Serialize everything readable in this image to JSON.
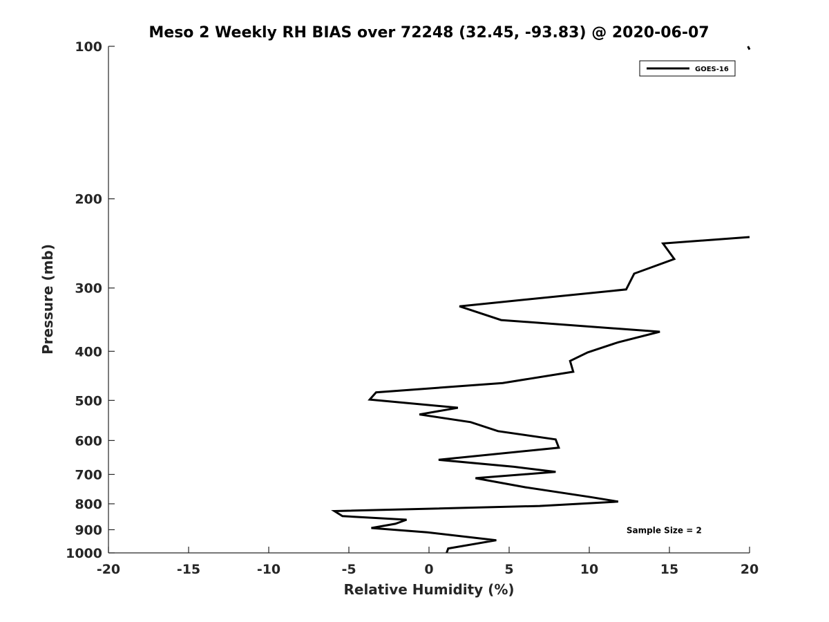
{
  "chart_data": {
    "type": "line",
    "title": "Meso 2 Weekly RH BIAS over 72248 (32.45, -93.83) @ 2020-06-07",
    "xlabel": "Relative Humidity (%)",
    "ylabel": "Pressure (mb)",
    "xlim": [
      -20,
      20
    ],
    "ylim": [
      100,
      1000
    ],
    "y_scale": "log",
    "y_reversed": true,
    "grid": false,
    "legend_position": "top-right",
    "x_ticks": [
      -20,
      -15,
      -10,
      -5,
      0,
      5,
      10,
      15,
      20
    ],
    "x_tick_labels": [
      "-20",
      "-15",
      "-10",
      "-5",
      "0",
      "5",
      "10",
      "15",
      "20"
    ],
    "y_ticks": [
      100,
      200,
      300,
      400,
      500,
      600,
      700,
      800,
      900,
      1000
    ],
    "y_tick_labels": [
      "100",
      "200",
      "300",
      "400",
      "500",
      "600",
      "700",
      "800",
      "900",
      "1000"
    ],
    "series": [
      {
        "name": "GOES-16",
        "color": "#000000",
        "segments": [
          [
            {
              "x": 19.9,
              "y": 100
            },
            {
              "x": 20.0,
              "y": 101.5
            }
          ],
          [
            {
              "x": 20.0,
              "y": 238
            },
            {
              "x": 14.6,
              "y": 245
            },
            {
              "x": 15.3,
              "y": 263
            },
            {
              "x": 12.8,
              "y": 281
            },
            {
              "x": 12.3,
              "y": 302
            },
            {
              "x": 1.9,
              "y": 326
            },
            {
              "x": 4.5,
              "y": 347
            },
            {
              "x": 14.4,
              "y": 366
            },
            {
              "x": 11.8,
              "y": 384
            },
            {
              "x": 9.9,
              "y": 402
            },
            {
              "x": 8.8,
              "y": 418
            },
            {
              "x": 9.0,
              "y": 439
            },
            {
              "x": 4.6,
              "y": 462
            },
            {
              "x": -3.3,
              "y": 482
            },
            {
              "x": -3.7,
              "y": 498
            },
            {
              "x": 1.8,
              "y": 517
            },
            {
              "x": -0.6,
              "y": 533
            },
            {
              "x": 2.6,
              "y": 552
            },
            {
              "x": 4.3,
              "y": 575
            },
            {
              "x": 7.9,
              "y": 597
            },
            {
              "x": 8.1,
              "y": 620
            },
            {
              "x": 0.6,
              "y": 655
            },
            {
              "x": 5.3,
              "y": 676
            },
            {
              "x": 7.9,
              "y": 692
            },
            {
              "x": 2.9,
              "y": 712
            },
            {
              "x": 6.0,
              "y": 742
            },
            {
              "x": 10.1,
              "y": 776
            },
            {
              "x": 11.8,
              "y": 792
            },
            {
              "x": 6.9,
              "y": 808
            },
            {
              "x": -5.9,
              "y": 827
            },
            {
              "x": -5.4,
              "y": 846
            },
            {
              "x": -1.4,
              "y": 860
            },
            {
              "x": -2.1,
              "y": 876
            },
            {
              "x": -3.6,
              "y": 893
            },
            {
              "x": -0.1,
              "y": 911
            },
            {
              "x": 4.2,
              "y": 944
            },
            {
              "x": 1.2,
              "y": 980
            },
            {
              "x": 1.1,
              "y": 1000
            }
          ]
        ]
      }
    ],
    "annotations": [
      {
        "text": "Sample Size = 2",
        "x": 12.3,
        "y": 900
      }
    ]
  }
}
